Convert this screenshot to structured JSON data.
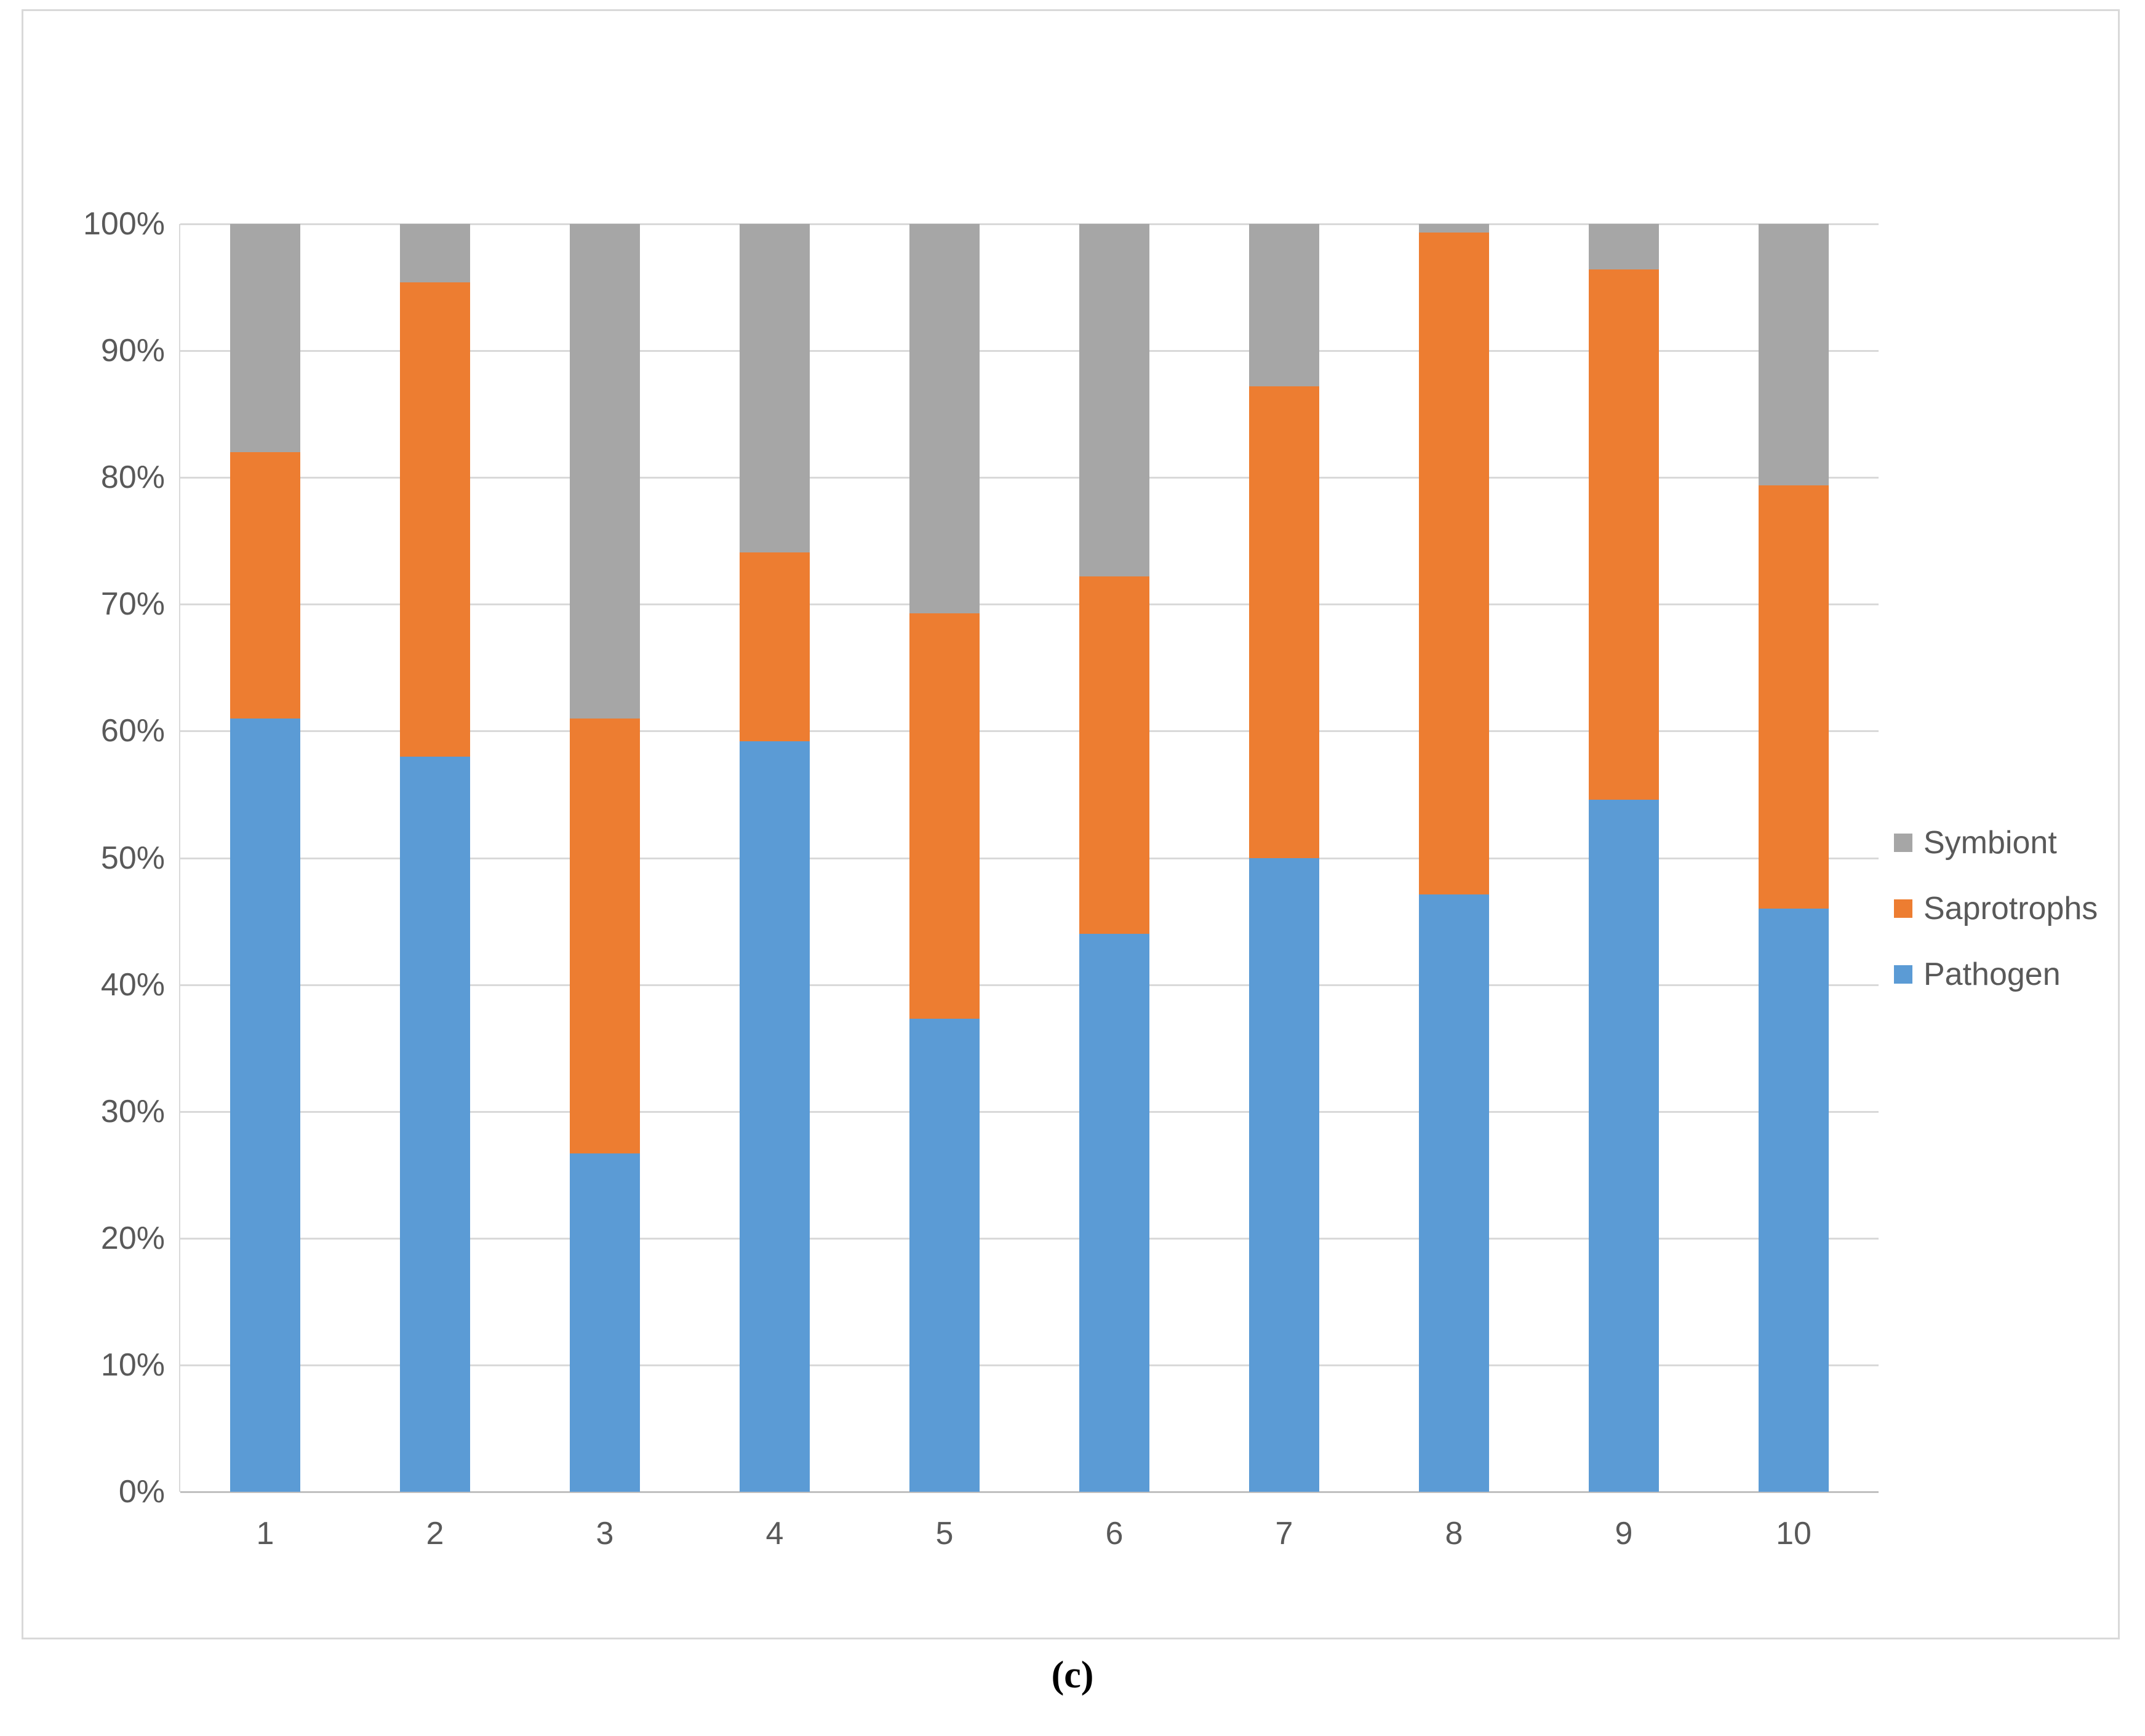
{
  "caption": "(c)",
  "legend": {
    "items": [
      {
        "label": "Symbiont",
        "color": "#A6A6A6"
      },
      {
        "label": "Saprotrophs",
        "color": "#ED7D31"
      },
      {
        "label": "Pathogen",
        "color": "#5B9BD5"
      }
    ]
  },
  "colors": {
    "pathogen": "#5B9BD5",
    "saprotrophs": "#ED7D31",
    "symbiont": "#A6A6A6",
    "gridline": "#D9D9D9",
    "axis_line": "#BFBFBF",
    "tick_text": "#595959"
  },
  "chart_data": {
    "type": "bar",
    "subtype": "stacked-100",
    "title": "",
    "xlabel": "",
    "ylabel": "",
    "categories": [
      "1",
      "2",
      "3",
      "4",
      "5",
      "6",
      "7",
      "8",
      "9",
      "10"
    ],
    "series": [
      {
        "name": "Pathogen",
        "color": "#5B9BD5",
        "values": [
          61.0,
          58.0,
          26.7,
          59.2,
          37.3,
          44.0,
          50.0,
          47.1,
          54.6,
          46.0
        ]
      },
      {
        "name": "Saprotrophs",
        "color": "#ED7D31",
        "values": [
          21.0,
          37.4,
          34.3,
          14.9,
          32.0,
          28.2,
          37.2,
          52.2,
          41.8,
          33.4
        ]
      },
      {
        "name": "Symbiont",
        "color": "#A6A6A6",
        "values": [
          18.0,
          4.6,
          39.0,
          25.9,
          30.7,
          27.8,
          12.8,
          0.7,
          3.6,
          20.6
        ]
      }
    ],
    "y_ticks": [
      "0%",
      "10%",
      "20%",
      "30%",
      "40%",
      "50%",
      "60%",
      "70%",
      "80%",
      "90%",
      "100%"
    ],
    "ylim": [
      0,
      100
    ],
    "grid": true,
    "legend_position": "right",
    "legend_order_top_to_bottom": [
      "Symbiont",
      "Saprotrophs",
      "Pathogen"
    ]
  }
}
